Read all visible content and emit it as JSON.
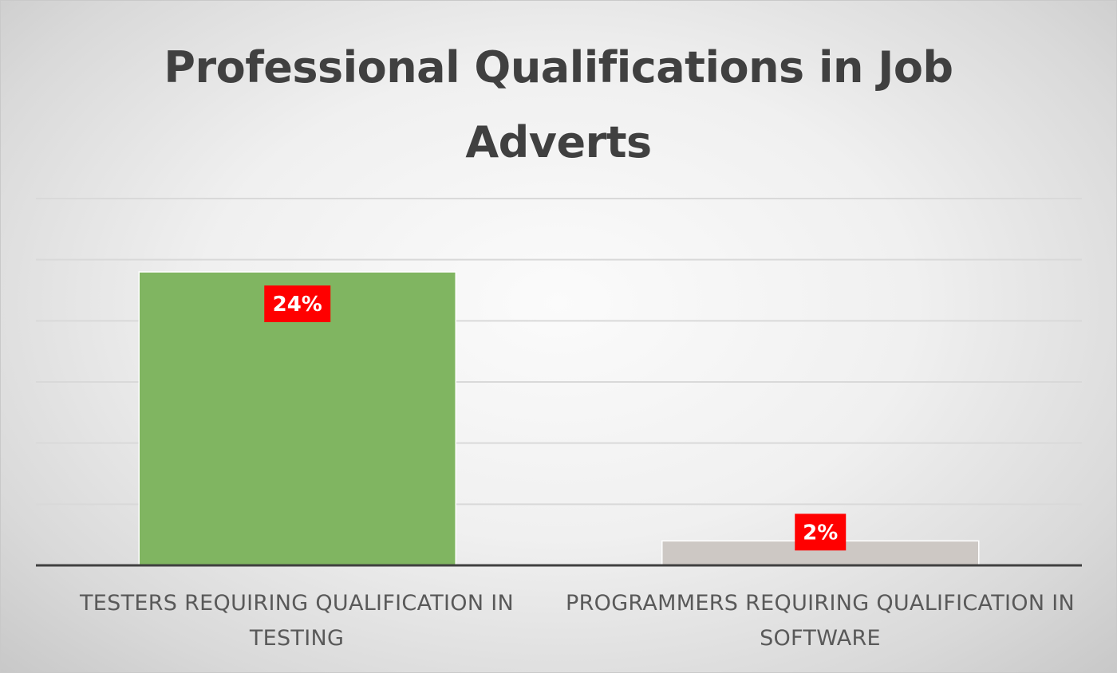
{
  "chart_data": {
    "type": "bar",
    "title": "Professional Qualifications in Job Adverts",
    "categories": [
      "TESTERS REQUIRING QUALIFICATION IN TESTING",
      "PROGRAMMERS REQUIRING QUALIFICATION IN SOFTWARE"
    ],
    "values": [
      24,
      2
    ],
    "data_labels": [
      "24%",
      "2%"
    ],
    "bar_colors": [
      "#80b561",
      "#cdc8c4"
    ],
    "label_background": "#ff0000",
    "gridline_color": "#d9d9d9",
    "axis_color": "#404040",
    "ylim": [
      0,
      30
    ],
    "grid": true,
    "legend": "none",
    "xlabel": "",
    "ylabel": ""
  }
}
